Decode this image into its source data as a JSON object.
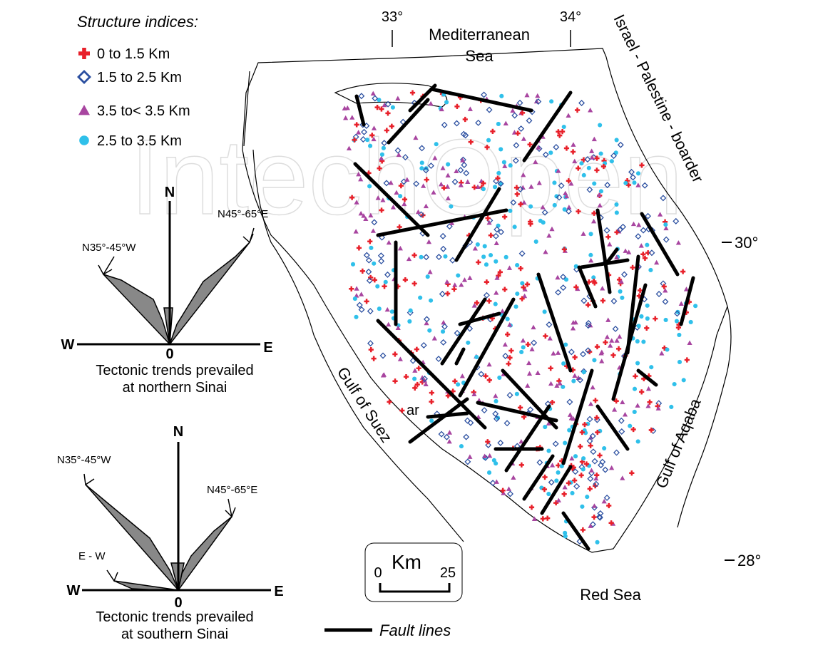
{
  "watermark": "IntechOpen",
  "legend": {
    "title": "Structure indices:",
    "items": [
      {
        "label": "0 to 1.5 Km",
        "symbol": "cross",
        "color": "#e8202a"
      },
      {
        "label": "1.5 to 2.5 Km",
        "symbol": "diamond",
        "color": "#2b4fa0"
      },
      {
        "label": "3.5 to< 3.5 Km",
        "symbol": "triangle",
        "color": "#a845a0"
      },
      {
        "label": "2.5 to 3.5 Km",
        "symbol": "circle",
        "color": "#2fc0ea"
      }
    ]
  },
  "map": {
    "lon_labels": [
      "33°",
      "34°"
    ],
    "lat_labels": [
      "30°",
      "28°"
    ],
    "sea_north": [
      "Mediterranean",
      "Sea"
    ],
    "border": "Israel - Palestine - boarder",
    "gulf_west": "Gulf of Suez",
    "gulf_east": "Gulf of Aqaba",
    "sea_south": "Red Sea",
    "place": "ar"
  },
  "scale": {
    "unit": "Km",
    "start": "0",
    "end": "25"
  },
  "fault_legend": "Fault lines",
  "roses": [
    {
      "north": "N",
      "west": "W",
      "east": "E",
      "origin": "0",
      "labels": [
        "N45°-65°E",
        "N35°-45°W"
      ],
      "caption": [
        "Tectonic trends prevailed",
        "at northern Sinai"
      ]
    },
    {
      "north": "N",
      "west": "W",
      "east": "E",
      "origin": "0",
      "labels": [
        "N35°-45°W",
        "N45°-65°E",
        "E - W"
      ],
      "caption": [
        "Tectonic trends prevailed",
        "at southern Sinai"
      ]
    }
  ]
}
